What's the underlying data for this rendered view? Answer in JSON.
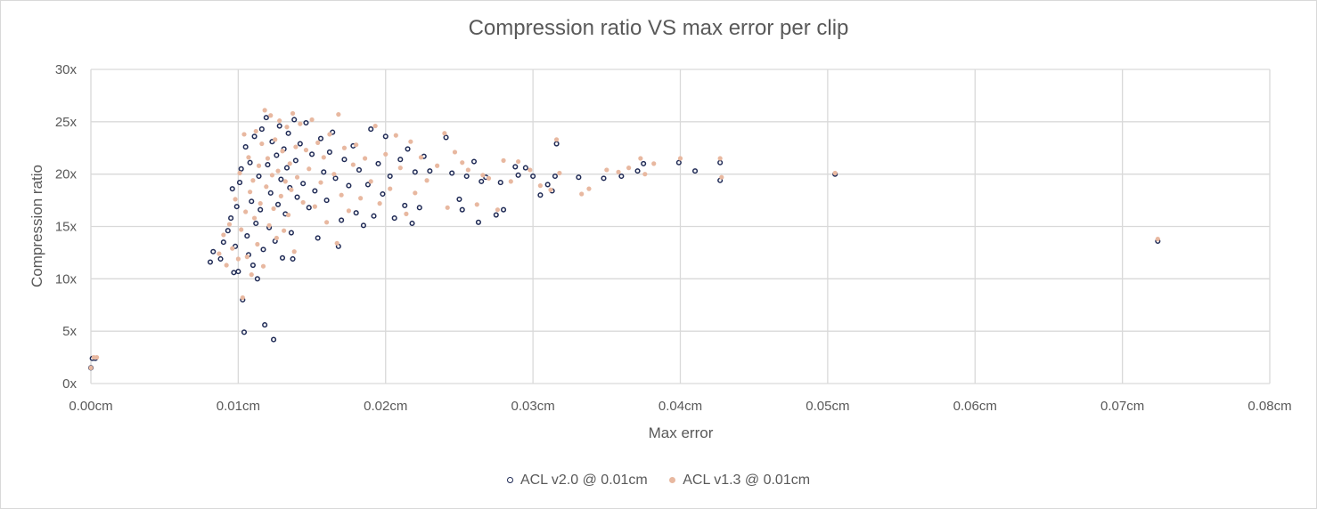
{
  "chart_data": {
    "type": "scatter",
    "title": "Compression ratio VS max error per clip",
    "xlabel": "Max error",
    "ylabel": "Compression ratio",
    "xlim": [
      0,
      0.08
    ],
    "ylim": [
      0,
      30
    ],
    "x_ticks": [
      "0.00cm",
      "0.01cm",
      "0.02cm",
      "0.03cm",
      "0.04cm",
      "0.05cm",
      "0.06cm",
      "0.07cm",
      "0.08cm"
    ],
    "y_ticks": [
      "0x",
      "5x",
      "10x",
      "15x",
      "20x",
      "25x",
      "30x"
    ],
    "grid": true,
    "legend_position": "bottom",
    "series": [
      {
        "name": "ACL v2.0 @ 0.01cm",
        "color": "#1f2a55",
        "marker": "hollow-circle",
        "points": [
          [
            0.0,
            1.5
          ],
          [
            0.0001,
            2.4
          ],
          [
            0.0003,
            2.4
          ],
          [
            0.0081,
            11.6
          ],
          [
            0.0083,
            12.6
          ],
          [
            0.0088,
            11.9
          ],
          [
            0.009,
            13.5
          ],
          [
            0.0093,
            14.6
          ],
          [
            0.0095,
            15.8
          ],
          [
            0.0096,
            18.6
          ],
          [
            0.0097,
            10.6
          ],
          [
            0.0098,
            13.1
          ],
          [
            0.0099,
            16.9
          ],
          [
            0.01,
            10.7
          ],
          [
            0.0101,
            19.2
          ],
          [
            0.0102,
            20.5
          ],
          [
            0.0103,
            8.0
          ],
          [
            0.0104,
            4.9
          ],
          [
            0.0105,
            22.6
          ],
          [
            0.0106,
            14.1
          ],
          [
            0.0107,
            12.3
          ],
          [
            0.0108,
            21.1
          ],
          [
            0.0109,
            17.4
          ],
          [
            0.011,
            11.3
          ],
          [
            0.0111,
            23.6
          ],
          [
            0.0112,
            15.3
          ],
          [
            0.0113,
            10.0
          ],
          [
            0.0114,
            19.8
          ],
          [
            0.0115,
            16.6
          ],
          [
            0.0116,
            24.3
          ],
          [
            0.0117,
            12.8
          ],
          [
            0.0118,
            5.6
          ],
          [
            0.0119,
            25.4
          ],
          [
            0.012,
            20.9
          ],
          [
            0.0121,
            14.9
          ],
          [
            0.0122,
            18.2
          ],
          [
            0.0123,
            23.1
          ],
          [
            0.0124,
            4.2
          ],
          [
            0.0125,
            13.6
          ],
          [
            0.0126,
            21.8
          ],
          [
            0.0127,
            17.1
          ],
          [
            0.0128,
            24.6
          ],
          [
            0.0129,
            19.5
          ],
          [
            0.013,
            12.0
          ],
          [
            0.0131,
            22.4
          ],
          [
            0.0132,
            16.2
          ],
          [
            0.0133,
            20.6
          ],
          [
            0.0134,
            23.9
          ],
          [
            0.0135,
            18.7
          ],
          [
            0.0136,
            14.4
          ],
          [
            0.0137,
            11.9
          ],
          [
            0.0138,
            25.2
          ],
          [
            0.0139,
            21.3
          ],
          [
            0.014,
            17.8
          ],
          [
            0.0142,
            22.9
          ],
          [
            0.0144,
            19.1
          ],
          [
            0.0146,
            24.9
          ],
          [
            0.0148,
            16.8
          ],
          [
            0.015,
            21.9
          ],
          [
            0.0152,
            18.4
          ],
          [
            0.0154,
            13.9
          ],
          [
            0.0156,
            23.4
          ],
          [
            0.0158,
            20.2
          ],
          [
            0.016,
            17.5
          ],
          [
            0.0162,
            22.1
          ],
          [
            0.0164,
            24.0
          ],
          [
            0.0166,
            19.6
          ],
          [
            0.0168,
            13.1
          ],
          [
            0.017,
            15.6
          ],
          [
            0.0172,
            21.4
          ],
          [
            0.0175,
            18.9
          ],
          [
            0.0178,
            22.7
          ],
          [
            0.018,
            16.3
          ],
          [
            0.0182,
            20.4
          ],
          [
            0.0185,
            15.1
          ],
          [
            0.0188,
            19.0
          ],
          [
            0.019,
            24.3
          ],
          [
            0.0192,
            16.0
          ],
          [
            0.0195,
            21.0
          ],
          [
            0.0198,
            18.1
          ],
          [
            0.02,
            23.6
          ],
          [
            0.0203,
            19.8
          ],
          [
            0.0206,
            15.8
          ],
          [
            0.021,
            21.4
          ],
          [
            0.0213,
            17.0
          ],
          [
            0.0215,
            22.4
          ],
          [
            0.0218,
            15.3
          ],
          [
            0.022,
            20.2
          ],
          [
            0.0223,
            16.8
          ],
          [
            0.0226,
            21.7
          ],
          [
            0.023,
            20.3
          ],
          [
            0.0241,
            23.5
          ],
          [
            0.0245,
            20.1
          ],
          [
            0.025,
            17.6
          ],
          [
            0.0252,
            16.6
          ],
          [
            0.0255,
            19.8
          ],
          [
            0.026,
            21.2
          ],
          [
            0.0263,
            15.4
          ],
          [
            0.0265,
            19.3
          ],
          [
            0.0268,
            19.7
          ],
          [
            0.0275,
            16.1
          ],
          [
            0.0278,
            19.2
          ],
          [
            0.028,
            16.6
          ],
          [
            0.0288,
            20.7
          ],
          [
            0.029,
            19.9
          ],
          [
            0.0295,
            20.6
          ],
          [
            0.03,
            19.8
          ],
          [
            0.0305,
            18.0
          ],
          [
            0.031,
            19.0
          ],
          [
            0.0313,
            18.4
          ],
          [
            0.0315,
            19.8
          ],
          [
            0.0316,
            22.9
          ],
          [
            0.0331,
            19.7
          ],
          [
            0.0348,
            19.6
          ],
          [
            0.036,
            19.8
          ],
          [
            0.0371,
            20.3
          ],
          [
            0.0375,
            21.0
          ],
          [
            0.0399,
            21.1
          ],
          [
            0.041,
            20.3
          ],
          [
            0.0427,
            21.1
          ],
          [
            0.0427,
            19.4
          ],
          [
            0.0505,
            20.0
          ],
          [
            0.0724,
            13.6
          ]
        ]
      },
      {
        "name": "ACL v1.3 @ 0.01cm",
        "color": "#e8b8a0",
        "marker": "filled-circle",
        "points": [
          [
            0.0,
            1.5
          ],
          [
            0.0002,
            2.5
          ],
          [
            0.0004,
            2.5
          ],
          [
            0.0087,
            12.4
          ],
          [
            0.009,
            14.2
          ],
          [
            0.0092,
            11.3
          ],
          [
            0.0094,
            15.2
          ],
          [
            0.0096,
            12.9
          ],
          [
            0.0098,
            17.6
          ],
          [
            0.01,
            11.9
          ],
          [
            0.0101,
            20.1
          ],
          [
            0.0102,
            14.7
          ],
          [
            0.0103,
            8.2
          ],
          [
            0.0104,
            23.8
          ],
          [
            0.0105,
            16.4
          ],
          [
            0.0106,
            12.1
          ],
          [
            0.0107,
            21.6
          ],
          [
            0.0108,
            18.3
          ],
          [
            0.0109,
            10.4
          ],
          [
            0.011,
            19.4
          ],
          [
            0.0111,
            15.8
          ],
          [
            0.0112,
            24.1
          ],
          [
            0.0113,
            13.3
          ],
          [
            0.0114,
            20.8
          ],
          [
            0.0115,
            17.2
          ],
          [
            0.0116,
            22.9
          ],
          [
            0.0117,
            11.2
          ],
          [
            0.0118,
            26.1
          ],
          [
            0.0119,
            18.8
          ],
          [
            0.012,
            21.5
          ],
          [
            0.0121,
            15.1
          ],
          [
            0.0122,
            25.6
          ],
          [
            0.0123,
            19.9
          ],
          [
            0.0124,
            16.7
          ],
          [
            0.0125,
            23.3
          ],
          [
            0.0126,
            13.9
          ],
          [
            0.0127,
            20.3
          ],
          [
            0.0128,
            25.1
          ],
          [
            0.0129,
            17.9
          ],
          [
            0.013,
            22.2
          ],
          [
            0.0131,
            14.6
          ],
          [
            0.0132,
            19.3
          ],
          [
            0.0133,
            24.5
          ],
          [
            0.0134,
            16.1
          ],
          [
            0.0135,
            21.0
          ],
          [
            0.0136,
            18.5
          ],
          [
            0.0137,
            25.8
          ],
          [
            0.0138,
            12.6
          ],
          [
            0.0139,
            22.6
          ],
          [
            0.014,
            19.7
          ],
          [
            0.0142,
            24.8
          ],
          [
            0.0144,
            17.3
          ],
          [
            0.0146,
            22.3
          ],
          [
            0.0148,
            20.5
          ],
          [
            0.015,
            25.2
          ],
          [
            0.0152,
            16.9
          ],
          [
            0.0154,
            23.0
          ],
          [
            0.0156,
            19.2
          ],
          [
            0.0158,
            21.6
          ],
          [
            0.016,
            15.4
          ],
          [
            0.0162,
            23.8
          ],
          [
            0.0165,
            20.0
          ],
          [
            0.0167,
            13.4
          ],
          [
            0.0168,
            25.7
          ],
          [
            0.017,
            18.0
          ],
          [
            0.0172,
            22.5
          ],
          [
            0.0175,
            16.5
          ],
          [
            0.0178,
            20.9
          ],
          [
            0.018,
            22.8
          ],
          [
            0.0183,
            17.7
          ],
          [
            0.0186,
            21.5
          ],
          [
            0.019,
            19.3
          ],
          [
            0.0193,
            24.6
          ],
          [
            0.0196,
            17.2
          ],
          [
            0.02,
            21.9
          ],
          [
            0.0203,
            18.6
          ],
          [
            0.0207,
            23.7
          ],
          [
            0.021,
            20.6
          ],
          [
            0.0214,
            16.2
          ],
          [
            0.0217,
            23.1
          ],
          [
            0.022,
            18.2
          ],
          [
            0.0224,
            21.6
          ],
          [
            0.0228,
            19.4
          ],
          [
            0.0235,
            20.8
          ],
          [
            0.024,
            23.9
          ],
          [
            0.0242,
            16.8
          ],
          [
            0.0247,
            22.1
          ],
          [
            0.0252,
            21.1
          ],
          [
            0.0256,
            20.4
          ],
          [
            0.0262,
            17.1
          ],
          [
            0.0266,
            19.9
          ],
          [
            0.027,
            19.6
          ],
          [
            0.0276,
            16.6
          ],
          [
            0.028,
            21.3
          ],
          [
            0.0285,
            19.3
          ],
          [
            0.029,
            21.2
          ],
          [
            0.0298,
            20.4
          ],
          [
            0.0305,
            18.9
          ],
          [
            0.0312,
            18.5
          ],
          [
            0.0316,
            23.3
          ],
          [
            0.0318,
            20.1
          ],
          [
            0.0333,
            18.1
          ],
          [
            0.0338,
            18.6
          ],
          [
            0.035,
            20.4
          ],
          [
            0.0358,
            20.2
          ],
          [
            0.0365,
            20.6
          ],
          [
            0.0373,
            21.5
          ],
          [
            0.0376,
            20.0
          ],
          [
            0.0382,
            21.0
          ],
          [
            0.04,
            21.5
          ],
          [
            0.0427,
            21.5
          ],
          [
            0.0428,
            19.7
          ],
          [
            0.0505,
            20.1
          ],
          [
            0.0724,
            13.8
          ]
        ]
      }
    ]
  }
}
